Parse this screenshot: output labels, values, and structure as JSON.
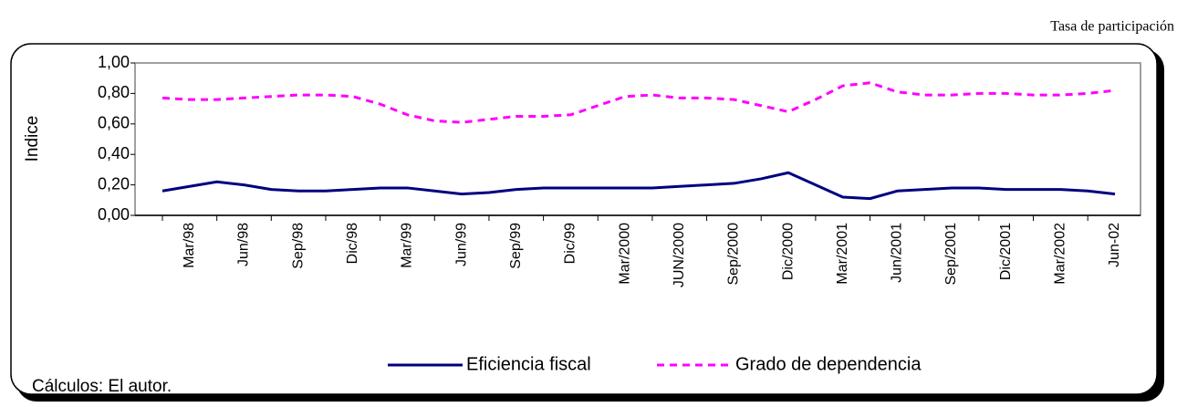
{
  "chart_data": {
    "type": "line",
    "header_note": "Tasa de participación",
    "ylabel": "Indice",
    "source_note": "Cálculos: El autor.",
    "categories": [
      null,
      "Mar/98",
      null,
      "Jun/98",
      null,
      "Sep/98",
      null,
      "Dic/98",
      null,
      "Mar/99",
      null,
      "Jun/99",
      null,
      "Sep/99",
      null,
      "Dic/99",
      null,
      "Mar/2000",
      null,
      "JUN/2000",
      null,
      "Sep/2000",
      null,
      "Dic/2000",
      null,
      "Mar/2001",
      null,
      "Jun/2001",
      null,
      "Sep/2001",
      null,
      "Dic/2001",
      null,
      "Mar/2002",
      null,
      "Jun-02"
    ],
    "series": [
      {
        "name": "Eficiencia fiscal",
        "color": "#000080",
        "dashed": false,
        "values": [
          0.16,
          0.19,
          0.22,
          0.2,
          0.17,
          0.16,
          0.16,
          0.17,
          0.18,
          0.18,
          0.16,
          0.14,
          0.15,
          0.17,
          0.18,
          0.18,
          0.18,
          0.18,
          0.18,
          0.19,
          0.2,
          0.21,
          0.24,
          0.28,
          0.2,
          0.12,
          0.11,
          0.16,
          0.17,
          0.18,
          0.18,
          0.17,
          0.17,
          0.17,
          0.16,
          0.14
        ]
      },
      {
        "name": "Grado de dependencia",
        "color": "#ff00ff",
        "dashed": true,
        "values": [
          0.77,
          0.76,
          0.76,
          0.77,
          0.78,
          0.79,
          0.79,
          0.78,
          0.73,
          0.66,
          0.62,
          0.61,
          0.63,
          0.65,
          0.65,
          0.66,
          0.72,
          0.78,
          0.79,
          0.77,
          0.77,
          0.76,
          0.72,
          0.68,
          0.76,
          0.85,
          0.87,
          0.81,
          0.79,
          0.79,
          0.8,
          0.8,
          0.79,
          0.79,
          0.8,
          0.82
        ]
      }
    ],
    "ylim": [
      0,
      1
    ],
    "yticks": [
      {
        "value": 0,
        "label": "0,00"
      },
      {
        "value": 0.2,
        "label": "0,20"
      },
      {
        "value": 0.4,
        "label": "0,40"
      },
      {
        "value": 0.6,
        "label": "0,60"
      },
      {
        "value": 0.8,
        "label": "0,80"
      },
      {
        "value": 1,
        "label": "1,00"
      }
    ],
    "grid": false,
    "legend": "bottom"
  }
}
